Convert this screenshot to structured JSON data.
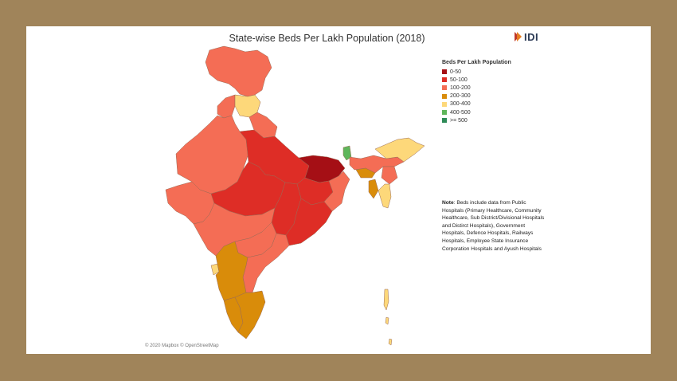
{
  "title": "State-wise Beds Per Lakh Population (2018)",
  "brand": {
    "name": "IDI",
    "colors": [
      "#c0392b",
      "#e67e22",
      "#2b3a55"
    ]
  },
  "legend": {
    "title": "Beds Per Lakh Population",
    "items": [
      {
        "label": "0-50",
        "color": "#a50f15"
      },
      {
        "label": "50-100",
        "color": "#de2d26"
      },
      {
        "label": "100-200",
        "color": "#f46d55"
      },
      {
        "label": "200-300",
        "color": "#d98c0a"
      },
      {
        "label": "300-400",
        "color": "#fdd87a"
      },
      {
        "label": "400-500",
        "color": "#5fb65b"
      },
      {
        "label": ">= 500",
        "color": "#2e8b57"
      }
    ]
  },
  "note": {
    "label": "Note",
    "text": ": Beds include data from Public Hospitals (Primary Healthcare, Community Healthcare, Sub District/Divisional Hospitals and Distirct Hospitals), Government Hospitals, Defence Hospitals, Railways Hospitals, Employee State Insurance Corporation Hospitals and Ayush Hospitals"
  },
  "attribution": "© 2020 Mapbox © OpenStreetMap",
  "map": {
    "regions": [
      {
        "name": "jammu-kashmir",
        "category": "100-200"
      },
      {
        "name": "himachal-pradesh",
        "category": "300-400"
      },
      {
        "name": "punjab",
        "category": "100-200"
      },
      {
        "name": "uttarakhand",
        "category": "100-200"
      },
      {
        "name": "rajasthan",
        "category": "100-200"
      },
      {
        "name": "uttar-pradesh",
        "category": "50-100"
      },
      {
        "name": "bihar",
        "category": "0-50"
      },
      {
        "name": "gujarat",
        "category": "100-200"
      },
      {
        "name": "madhya-pradesh",
        "category": "50-100"
      },
      {
        "name": "jharkhand",
        "category": "50-100"
      },
      {
        "name": "west-bengal",
        "category": "100-200"
      },
      {
        "name": "odisha",
        "category": "50-100"
      },
      {
        "name": "chhattisgarh",
        "category": "50-100"
      },
      {
        "name": "maharashtra",
        "category": "100-200"
      },
      {
        "name": "telangana",
        "category": "100-200"
      },
      {
        "name": "andhra-pradesh",
        "category": "100-200"
      },
      {
        "name": "goa",
        "category": "300-400"
      },
      {
        "name": "karnataka",
        "category": "200-300"
      },
      {
        "name": "kerala",
        "category": "200-300"
      },
      {
        "name": "tamil-nadu",
        "category": "200-300"
      },
      {
        "name": "sikkim",
        "category": "400-500"
      },
      {
        "name": "arunachal-pradesh",
        "category": "300-400"
      },
      {
        "name": "assam",
        "category": "100-200"
      },
      {
        "name": "meghalaya",
        "category": "200-300"
      },
      {
        "name": "manipur",
        "category": "100-200"
      },
      {
        "name": "mizoram",
        "category": "300-400"
      },
      {
        "name": "tripura",
        "category": "200-300"
      },
      {
        "name": "andaman-nicobar",
        "category": "300-400"
      }
    ]
  }
}
